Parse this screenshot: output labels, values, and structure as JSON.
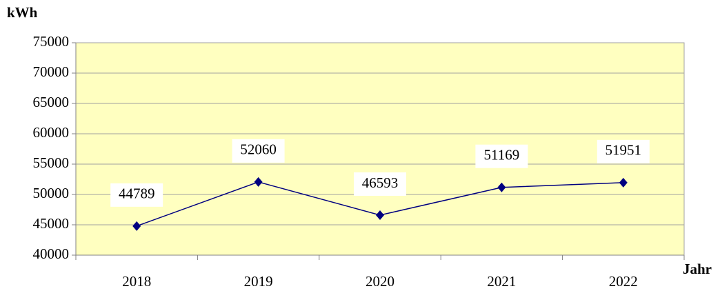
{
  "chart_data": {
    "type": "line",
    "ylabel": "kWh",
    "xlabel": "Jahr",
    "categories": [
      "2018",
      "2019",
      "2020",
      "2021",
      "2022"
    ],
    "values": [
      44789,
      52060,
      46593,
      51169,
      51951
    ],
    "color": "#000080",
    "ylim": [
      40000,
      75000
    ],
    "yticks": [
      40000,
      45000,
      50000,
      55000,
      60000,
      65000,
      70000,
      75000
    ],
    "grid": true,
    "plot_background": "#ffffc0"
  }
}
